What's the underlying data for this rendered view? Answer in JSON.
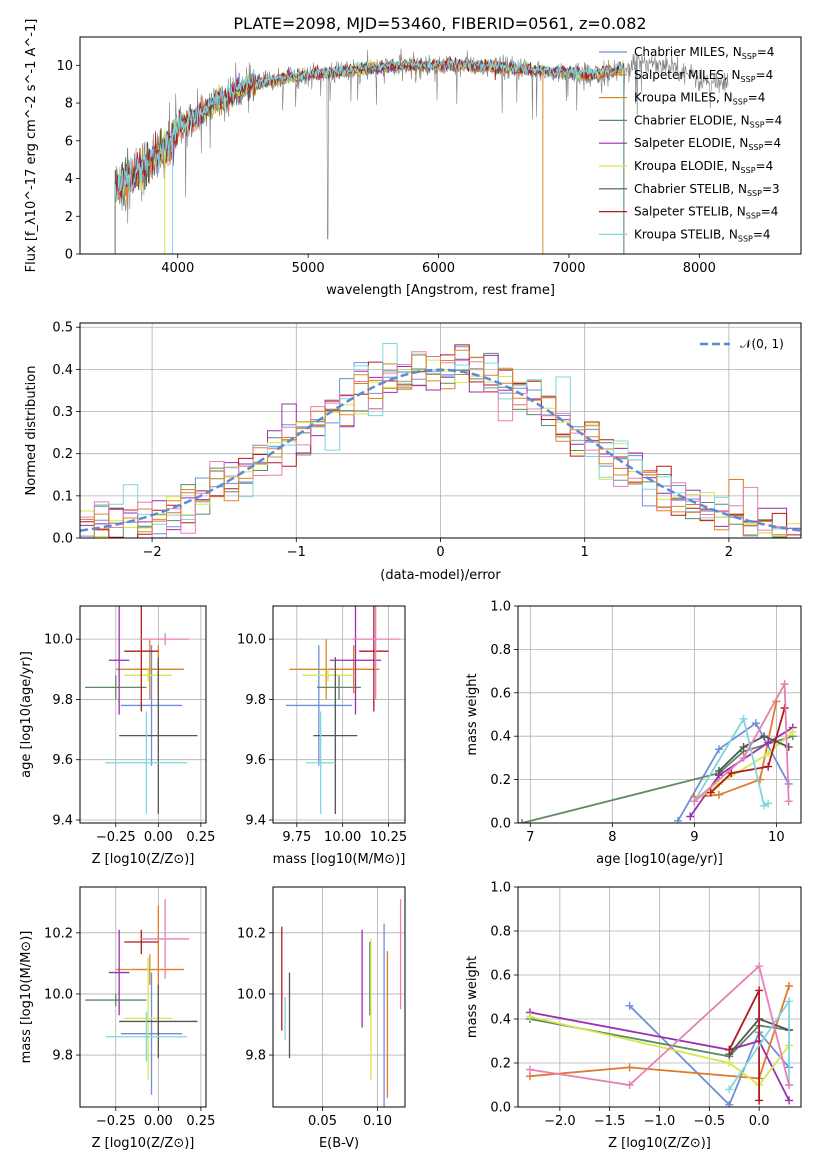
{
  "figure_title": "PLATE=2098, MJD=53460, FIBERID=0561, z=0.082",
  "colors": {
    "Chabrier MILES": "#6f8fd9",
    "Salpeter MILES": "#e07a2e",
    "Kroupa MILES": "#d9892b",
    "Chabrier ELODIE": "#5e8a63",
    "Salpeter ELODIE": "#9b2fae",
    "Kroupa ELODIE": "#d6e84a",
    "Chabrier STELIB": "#555555",
    "Salpeter STELIB": "#b01c1c",
    "Kroupa STELIB": "#7fd6e0",
    "pink": "#e87fb6",
    "data": "#808080",
    "normal": "#5b8bd6"
  },
  "chart_data": [
    {
      "id": "spectrum",
      "type": "line",
      "xlabel": "wavelength [Angstrom, rest frame]",
      "ylabel": "Flux [f_λ10^-17 erg cm^-2 s^-1 A^-1]",
      "xlim": [
        3250,
        8780
      ],
      "ylim": [
        0,
        11.5
      ],
      "xticks": [
        "4000",
        "5000",
        "6000",
        "7000",
        "8000"
      ],
      "yticks": [
        "0",
        "2",
        "4",
        "6",
        "8",
        "10"
      ],
      "legend_position": "upper-right",
      "legend": [
        {
          "label": "Chabrier MILES, N",
          "sub": "SSP",
          "tail": "=4",
          "key": "Chabrier MILES"
        },
        {
          "label": "Salpeter MILES, N",
          "sub": "SSP",
          "tail": "=4",
          "key": "Salpeter MILES"
        },
        {
          "label": "Kroupa MILES, N",
          "sub": "SSP",
          "tail": "=4",
          "key": "Kroupa MILES"
        },
        {
          "label": "Chabrier ELODIE, N",
          "sub": "SSP",
          "tail": "=4",
          "key": "Chabrier ELODIE"
        },
        {
          "label": "Salpeter ELODIE, N",
          "sub": "SSP",
          "tail": "=4",
          "key": "Salpeter ELODIE"
        },
        {
          "label": "Kroupa ELODIE, N",
          "sub": "SSP",
          "tail": "=4",
          "key": "Kroupa ELODIE"
        },
        {
          "label": "Chabrier STELIB, N",
          "sub": "SSP",
          "tail": "=3",
          "key": "Chabrier STELIB"
        },
        {
          "label": "Salpeter STELIB, N",
          "sub": "SSP",
          "tail": "=4",
          "key": "Salpeter STELIB"
        },
        {
          "label": "Kroupa STELIB, N",
          "sub": "SSP",
          "tail": "=4",
          "key": "Kroupa STELIB"
        }
      ],
      "continuum": {
        "x": [
          3520,
          3700,
          3850,
          3950,
          4000,
          4100,
          4200,
          4300,
          4400,
          4500,
          4600,
          4800,
          5000,
          5200,
          5400,
          5600,
          5800,
          6000,
          6200,
          6400,
          6600,
          6800,
          7000,
          7200,
          7400,
          7600,
          7800,
          8000,
          8200
        ],
        "y": [
          3.4,
          4.4,
          5.3,
          5.8,
          6.7,
          7.1,
          7.6,
          8.1,
          8.3,
          8.8,
          9.0,
          9.3,
          9.5,
          9.6,
          9.8,
          9.9,
          10.0,
          10.0,
          10.0,
          9.9,
          9.8,
          9.7,
          9.6,
          9.5,
          9.8,
          10.2,
          10.0,
          9.2,
          8.9
        ]
      },
      "x_range_data": [
        3520,
        8220
      ],
      "x_range_models": [
        3520,
        7420
      ]
    },
    {
      "id": "residuals",
      "type": "histogram",
      "xlabel": "(data-model)/error",
      "ylabel": "Normed distribution",
      "xlim": [
        -2.5,
        2.5
      ],
      "ylim": [
        0,
        0.51
      ],
      "grid": true,
      "xticks": [
        "−2",
        "−1",
        "0",
        "1",
        "2"
      ],
      "yticks": [
        "0.0",
        "0.1",
        "0.2",
        "0.3",
        "0.4",
        "0.5"
      ],
      "bin_width": 0.1,
      "legend": [
        {
          "label": "𝒩(0, 1)",
          "key": "normal"
        }
      ],
      "legend_position": "upper-right"
    },
    {
      "id": "age_vs_Z",
      "type": "errorbar",
      "xlabel": "Z [log10(Z/Z⊙)]",
      "ylabel": "age  [log10(age/yr)]",
      "xlim": [
        -0.46,
        0.28
      ],
      "ylim": [
        9.39,
        10.11
      ],
      "grid": true,
      "xticks": [
        "−0.25",
        "0.00",
        "0.25"
      ],
      "yticks": [
        "9.4",
        "9.6",
        "9.8",
        "10.0"
      ],
      "points": [
        {
          "key": "Chabrier MILES",
          "x": -0.04,
          "xerr": 0.18,
          "y": 9.78,
          "yerr": 0.2
        },
        {
          "key": "Salpeter MILES",
          "x": 0.0,
          "xerr": 0.15,
          "y": 9.9,
          "yerr": 0.08
        },
        {
          "key": "Kroupa MILES",
          "x": -0.05,
          "xerr": 0.2,
          "y": 9.9,
          "yerr": 0.1
        },
        {
          "key": "Chabrier ELODIE",
          "x": -0.25,
          "xerr": 0.18,
          "y": 9.84,
          "yerr": 0.04
        },
        {
          "key": "Salpeter ELODIE",
          "x": -0.23,
          "xerr": 0.06,
          "y": 9.93,
          "yerr": 0.18
        },
        {
          "key": "Kroupa ELODIE",
          "x": -0.06,
          "xerr": 0.14,
          "y": 9.88,
          "yerr": 0.02
        },
        {
          "key": "Chabrier STELIB",
          "x": 0.0,
          "xerr": 0.23,
          "y": 9.68,
          "yerr": 0.26
        },
        {
          "key": "Salpeter STELIB",
          "x": -0.1,
          "xerr": 0.1,
          "y": 9.96,
          "yerr": 0.2
        },
        {
          "key": "Kroupa STELIB",
          "x": -0.07,
          "xerr": 0.24,
          "y": 9.59,
          "yerr": 0.17
        },
        {
          "key": "pink",
          "x": 0.04,
          "xerr": 0.14,
          "y": 10.0,
          "yerr": 0.02
        }
      ]
    },
    {
      "id": "age_vs_mass",
      "type": "errorbar",
      "xlabel": "mass [log10(M/M⊙)]",
      "ylabel": "",
      "xlim": [
        9.62,
        10.34
      ],
      "ylim": [
        9.39,
        10.11
      ],
      "grid": true,
      "xticks": [
        "9.75",
        "10.00",
        "10.25"
      ],
      "yticks": [
        "9.4",
        "9.6",
        "9.8",
        "10.0"
      ],
      "points": [
        {
          "key": "Chabrier MILES",
          "x": 9.87,
          "xerr": 0.18,
          "y": 9.78,
          "yerr": 0.2
        },
        {
          "key": "Salpeter MILES",
          "x": 10.06,
          "xerr": 0.14,
          "y": 9.9,
          "yerr": 0.08
        },
        {
          "key": "Kroupa MILES",
          "x": 9.91,
          "xerr": 0.2,
          "y": 9.9,
          "yerr": 0.1
        },
        {
          "key": "Chabrier ELODIE",
          "x": 9.98,
          "xerr": 0.12,
          "y": 9.84,
          "yerr": 0.04
        },
        {
          "key": "Salpeter ELODIE",
          "x": 10.07,
          "xerr": 0.14,
          "y": 9.93,
          "yerr": 0.18
        },
        {
          "key": "Kroupa ELODIE",
          "x": 9.92,
          "xerr": 0.14,
          "y": 9.88,
          "yerr": 0.02
        },
        {
          "key": "Chabrier STELIB",
          "x": 9.96,
          "xerr": 0.12,
          "y": 9.68,
          "yerr": 0.26
        },
        {
          "key": "Salpeter STELIB",
          "x": 10.17,
          "xerr": 0.08,
          "y": 9.96,
          "yerr": 0.2
        },
        {
          "key": "Kroupa STELIB",
          "x": 9.88,
          "xerr": 0.08,
          "y": 9.59,
          "yerr": 0.17
        },
        {
          "key": "pink",
          "x": 10.18,
          "xerr": 0.13,
          "y": 10.0,
          "yerr": 0.2
        }
      ]
    },
    {
      "id": "mass_weight_vs_age",
      "type": "line",
      "xlabel": "age  [log10(age/yr)]",
      "ylabel": "mass weight",
      "xlim": [
        6.85,
        10.3
      ],
      "ylim": [
        0,
        1.0
      ],
      "grid": true,
      "xticks": [
        "7",
        "8",
        "9",
        "10"
      ],
      "yticks": [
        "0.0",
        "0.2",
        "0.4",
        "0.6",
        "0.8",
        "1.0"
      ],
      "series": [
        {
          "key": "Chabrier MILES",
          "x": [
            8.8,
            9.3,
            9.75,
            10.15
          ],
          "y": [
            0.01,
            0.34,
            0.46,
            0.18
          ]
        },
        {
          "key": "Salpeter MILES",
          "x": [
            9.0,
            9.3,
            9.8,
            10.0
          ],
          "y": [
            0.12,
            0.13,
            0.2,
            0.56
          ]
        },
        {
          "key": "Chabrier ELODIE",
          "x": [
            6.9,
            9.3,
            9.6,
            10.2
          ],
          "y": [
            0.0,
            0.23,
            0.33,
            0.4
          ]
        },
        {
          "key": "Salpeter ELODIE",
          "x": [
            8.95,
            9.3,
            9.9,
            10.2
          ],
          "y": [
            0.03,
            0.22,
            0.37,
            0.44
          ]
        },
        {
          "key": "Kroupa ELODIE",
          "x": [
            9.0,
            9.3,
            9.9,
            10.2
          ],
          "y": [
            0.1,
            0.18,
            0.32,
            0.42
          ]
        },
        {
          "key": "Chabrier STELIB",
          "x": [
            9.3,
            9.6,
            9.85,
            10.15
          ],
          "y": [
            0.24,
            0.35,
            0.4,
            0.35
          ]
        },
        {
          "key": "Salpeter STELIB",
          "x": [
            9.2,
            9.45,
            9.9,
            10.1
          ],
          "y": [
            0.14,
            0.23,
            0.26,
            0.53
          ]
        },
        {
          "key": "Kroupa STELIB",
          "x": [
            9.0,
            9.6,
            9.85,
            9.9
          ],
          "y": [
            0.1,
            0.48,
            0.08,
            0.09
          ]
        },
        {
          "key": "pink",
          "x": [
            9.0,
            9.6,
            10.1,
            10.15
          ],
          "y": [
            0.1,
            0.3,
            0.64,
            0.1
          ]
        }
      ]
    },
    {
      "id": "mass_vs_Z",
      "type": "errorbar",
      "xlabel": "Z [log10(Z/Z⊙)]",
      "ylabel": "mass [log10(M/M⊙)]",
      "xlim": [
        -0.46,
        0.28
      ],
      "ylim": [
        9.63,
        10.35
      ],
      "grid": true,
      "xticks": [
        "−0.25",
        "0.00",
        "0.25"
      ],
      "yticks": [
        "9.8",
        "10.0",
        "10.2"
      ],
      "points": [
        {
          "key": "Chabrier MILES",
          "x": -0.04,
          "xerr": 0.18,
          "y": 9.87,
          "yerr": 0.2
        },
        {
          "key": "Salpeter MILES",
          "x": 0.0,
          "xerr": 0.15,
          "y": 10.08,
          "yerr": 0.21
        },
        {
          "key": "Kroupa MILES",
          "x": -0.05,
          "xerr": 0.2,
          "y": 10.08,
          "yerr": 0.05
        },
        {
          "key": "Chabrier ELODIE",
          "x": -0.25,
          "xerr": 0.18,
          "y": 9.98,
          "yerr": 0.02
        },
        {
          "key": "Salpeter ELODIE",
          "x": -0.23,
          "xerr": 0.06,
          "y": 10.07,
          "yerr": 0.14
        },
        {
          "key": "Kroupa ELODIE",
          "x": -0.06,
          "xerr": 0.14,
          "y": 9.92,
          "yerr": 0.2
        },
        {
          "key": "Chabrier STELIB",
          "x": 0.0,
          "xerr": 0.23,
          "y": 9.91,
          "yerr": 0.12
        },
        {
          "key": "Salpeter STELIB",
          "x": -0.1,
          "xerr": 0.1,
          "y": 10.17,
          "yerr": 0.04
        },
        {
          "key": "Kroupa STELIB",
          "x": -0.07,
          "xerr": 0.24,
          "y": 9.86,
          "yerr": 0.08
        },
        {
          "key": "pink",
          "x": 0.04,
          "xerr": 0.14,
          "y": 10.18,
          "yerr": 0.13
        }
      ]
    },
    {
      "id": "mass_vs_ebv",
      "type": "errorbar",
      "xlabel": "E(B-V)",
      "ylabel": "",
      "xlim": [
        0.005,
        0.125
      ],
      "ylim": [
        9.63,
        10.35
      ],
      "grid": true,
      "xticks": [
        "0.05",
        "0.10"
      ],
      "yticks": [
        "9.8",
        "10.0",
        "10.2"
      ],
      "points": [
        {
          "key": "Salpeter STELIB",
          "x": 0.013,
          "y": 10.05,
          "yerr": 0.17
        },
        {
          "key": "Kroupa STELIB",
          "x": 0.016,
          "y": 9.92,
          "yerr": 0.07
        },
        {
          "key": "Chabrier STELIB",
          "x": 0.02,
          "y": 9.93,
          "yerr": 0.14
        },
        {
          "key": "Salpeter ELODIE",
          "x": 0.086,
          "y": 10.05,
          "yerr": 0.16
        },
        {
          "key": "Chabrier ELODIE",
          "x": 0.093,
          "y": 10.05,
          "yerr": 0.12
        },
        {
          "key": "Kroupa ELODIE",
          "x": 0.094,
          "y": 9.95,
          "yerr": 0.23
        },
        {
          "key": "Chabrier MILES",
          "x": 0.106,
          "y": 9.92,
          "yerr": 0.31
        },
        {
          "key": "Salpeter MILES",
          "x": 0.109,
          "y": 9.9,
          "yerr": 0.24
        },
        {
          "key": "pink",
          "x": 0.121,
          "y": 10.13,
          "yerr": 0.18
        }
      ]
    },
    {
      "id": "mass_weight_vs_Z",
      "type": "line",
      "xlabel": "Z [log10(Z/Z⊙)]",
      "ylabel": "mass weight",
      "xlim": [
        -2.42,
        0.42
      ],
      "ylim": [
        0,
        1.0
      ],
      "grid": true,
      "xticks": [
        "−2.0",
        "−1.5",
        "−1.0",
        "−0.5",
        "0.0"
      ],
      "yticks": [
        "0.0",
        "0.2",
        "0.4",
        "0.6",
        "0.8",
        "1.0"
      ],
      "series": [
        {
          "key": "Chabrier MILES",
          "x": [
            -1.3,
            -0.3,
            0.0,
            0.3
          ],
          "y": [
            0.46,
            0.01,
            0.34,
            0.18
          ]
        },
        {
          "key": "Salpeter MILES",
          "x": [
            -2.3,
            -1.3,
            0.0,
            0.3
          ],
          "y": [
            0.14,
            0.18,
            0.13,
            0.55
          ]
        },
        {
          "key": "Chabrier ELODIE",
          "x": [
            -2.3,
            -0.3,
            0.0,
            0.3
          ],
          "y": [
            0.4,
            0.23,
            0.37,
            0.35
          ]
        },
        {
          "key": "Salpeter ELODIE",
          "x": [
            -2.3,
            -0.3,
            0.0,
            0.3
          ],
          "y": [
            0.43,
            0.26,
            0.3,
            0.03
          ]
        },
        {
          "key": "Kroupa ELODIE",
          "x": [
            -2.3,
            -0.3,
            0.0,
            0.3
          ],
          "y": [
            0.41,
            0.2,
            0.1,
            0.28
          ]
        },
        {
          "key": "Chabrier STELIB",
          "x": [
            -0.3,
            0.0,
            0.3
          ],
          "y": [
            0.24,
            0.4,
            0.35
          ]
        },
        {
          "key": "Salpeter STELIB",
          "x": [
            -0.3,
            0.0,
            0.0
          ],
          "y": [
            0.26,
            0.53,
            0.03
          ]
        },
        {
          "key": "Kroupa STELIB",
          "x": [
            -0.3,
            0.3,
            0.3
          ],
          "y": [
            0.08,
            0.48,
            0.1
          ]
        },
        {
          "key": "pink",
          "x": [
            -2.3,
            -1.3,
            0.0,
            0.3
          ],
          "y": [
            0.17,
            0.1,
            0.64,
            0.1
          ]
        }
      ]
    }
  ]
}
